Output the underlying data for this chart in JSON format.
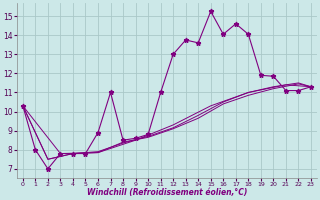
{
  "xlabel": "Windchill (Refroidissement éolien,°C)",
  "bg_color": "#cce8e8",
  "line_color": "#800080",
  "grid_color": "#aac8c8",
  "xlim": [
    -0.5,
    23.5
  ],
  "ylim": [
    6.5,
    15.7
  ],
  "xticks": [
    0,
    1,
    2,
    3,
    4,
    5,
    6,
    7,
    8,
    9,
    10,
    11,
    12,
    13,
    14,
    15,
    16,
    17,
    18,
    19,
    20,
    21,
    22,
    23
  ],
  "yticks": [
    7,
    8,
    9,
    10,
    11,
    12,
    13,
    14,
    15
  ],
  "main_x": [
    0,
    1,
    2,
    3,
    4,
    5,
    6,
    7,
    8,
    9,
    10,
    11,
    12,
    13,
    14,
    15,
    16,
    17,
    18,
    19,
    20,
    21,
    22,
    23
  ],
  "main_y": [
    10.3,
    8.0,
    7.0,
    7.8,
    7.8,
    7.8,
    8.9,
    11.0,
    8.5,
    8.6,
    8.8,
    11.0,
    13.0,
    13.75,
    13.6,
    15.25,
    14.05,
    14.6,
    14.05,
    11.9,
    11.85,
    11.1,
    11.1,
    11.3
  ],
  "grad_line1_x": [
    0,
    3,
    6,
    9,
    12,
    15,
    18,
    21,
    23
  ],
  "grad_line1_y": [
    10.3,
    7.8,
    7.85,
    8.5,
    9.3,
    10.3,
    11.0,
    11.4,
    11.3
  ],
  "grad_line2_x": [
    0,
    2,
    4,
    6,
    8,
    10,
    12,
    14,
    16,
    18,
    20,
    22,
    23
  ],
  "grad_line2_y": [
    10.3,
    7.5,
    7.8,
    7.9,
    8.35,
    8.7,
    9.15,
    9.8,
    10.5,
    11.0,
    11.3,
    11.5,
    11.3
  ],
  "grad_line3_x": [
    0,
    2,
    4,
    6,
    8,
    10,
    12,
    14,
    16,
    18,
    20,
    22,
    23
  ],
  "grad_line3_y": [
    10.3,
    7.5,
    7.8,
    7.85,
    8.4,
    8.65,
    9.1,
    9.65,
    10.4,
    10.85,
    11.2,
    11.45,
    11.3
  ]
}
